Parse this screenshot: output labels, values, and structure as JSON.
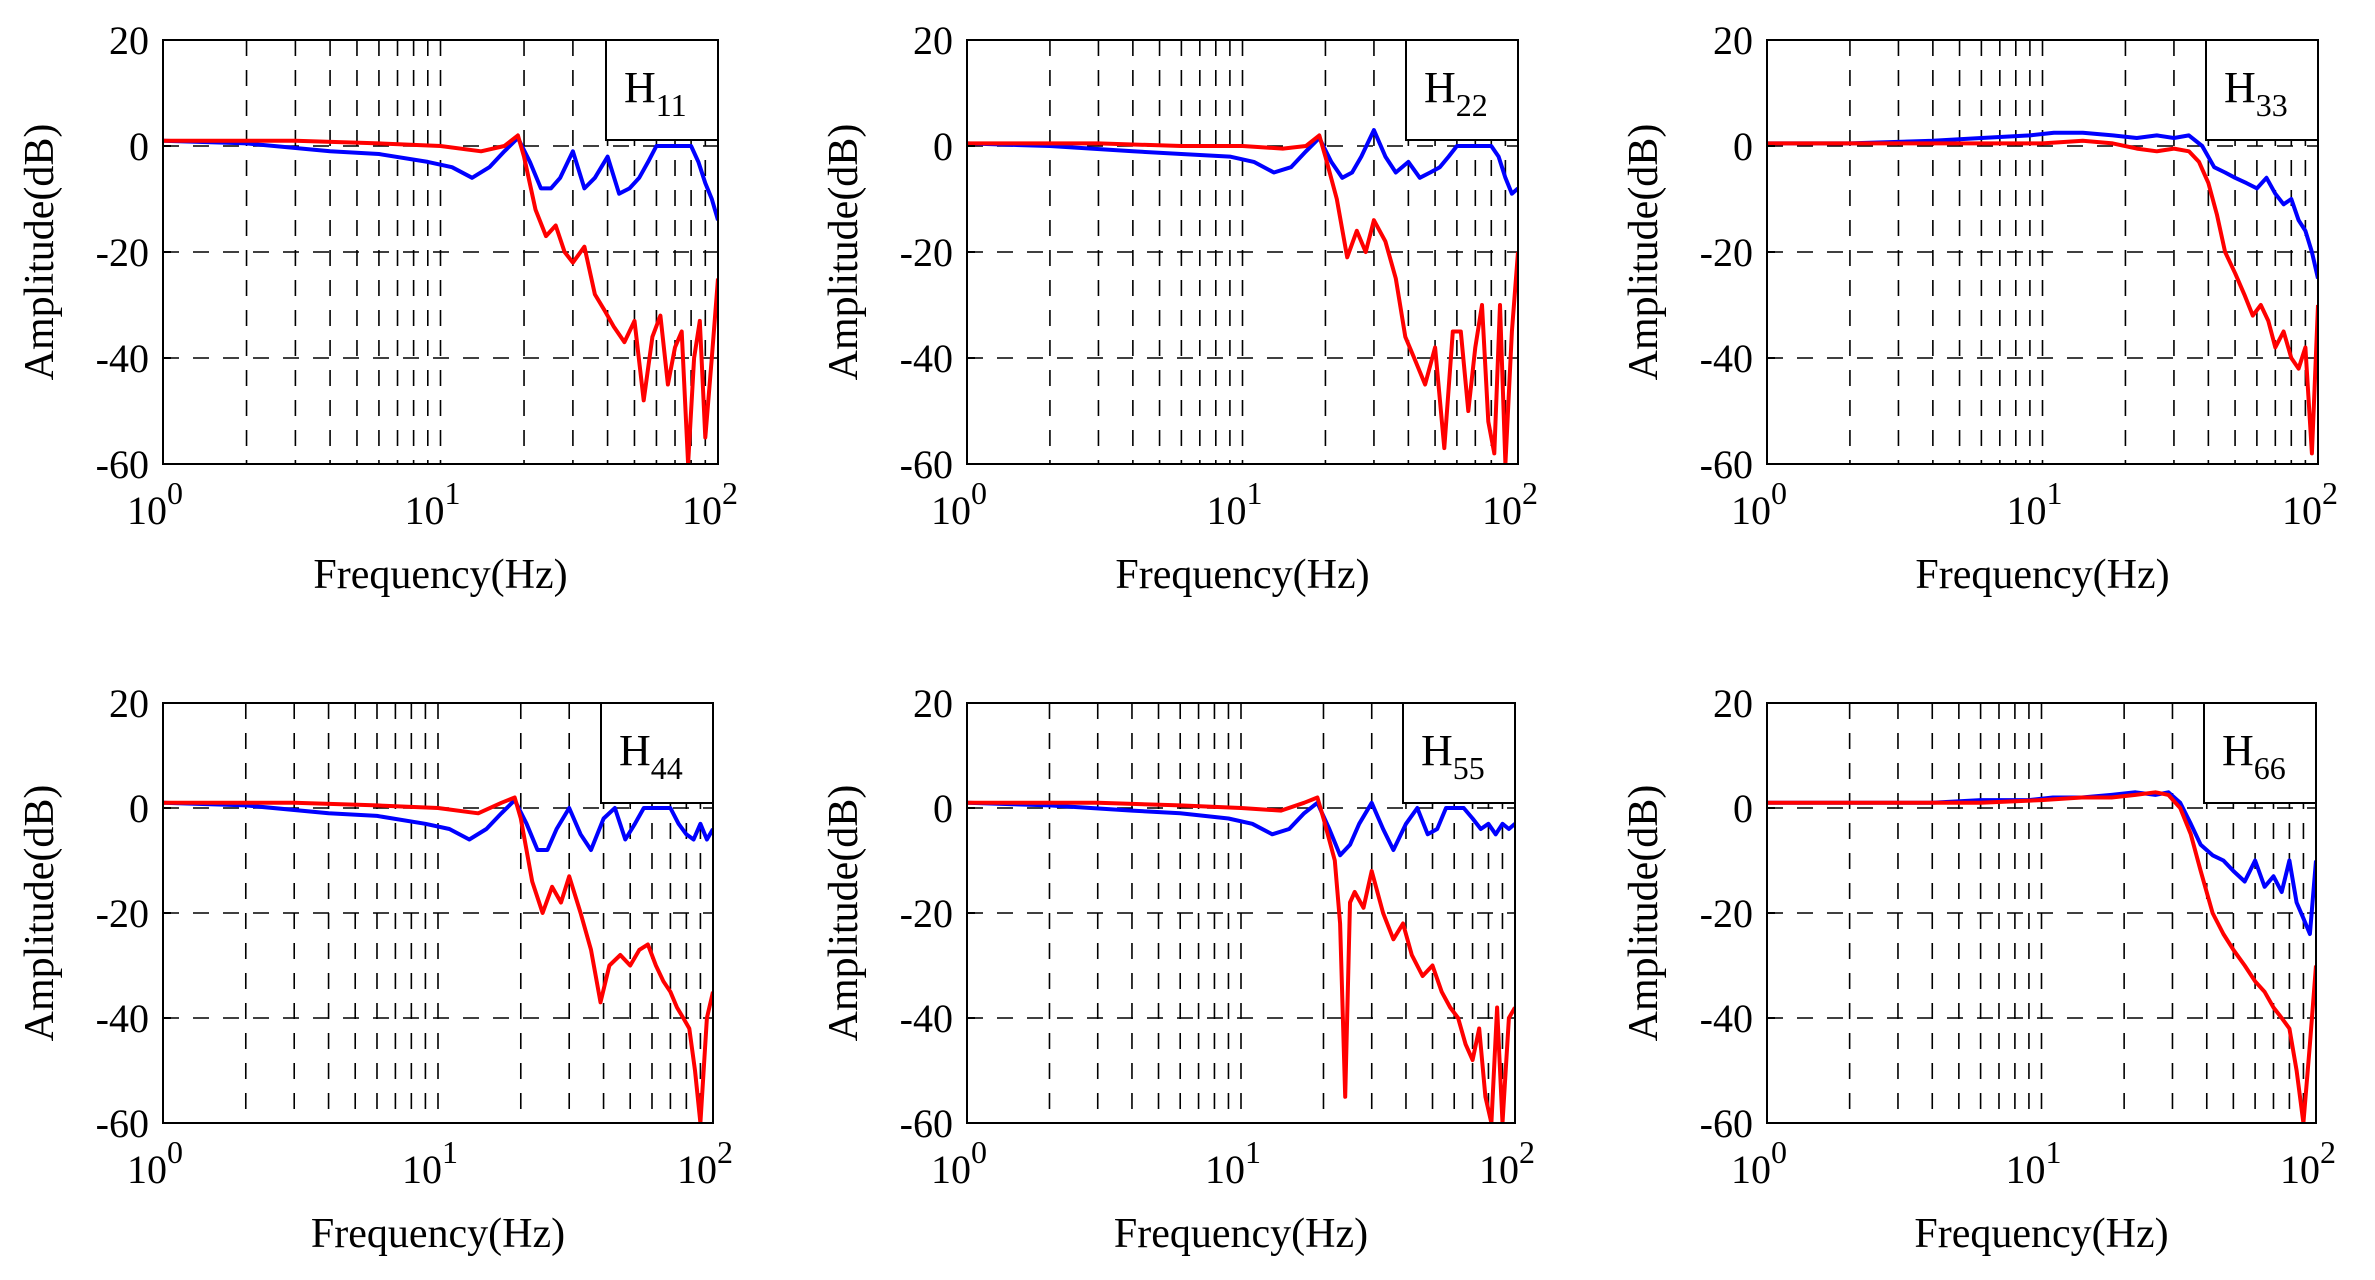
{
  "colors": {
    "series_a": "#0000ff",
    "series_b": "#ff0000",
    "grid": "#000000"
  },
  "chart_data": [
    {
      "type": "line",
      "label_main": "H",
      "label_sub": "11",
      "xlabel": "Frequency(Hz)",
      "ylabel": "Amplitude(dB)",
      "xscale": "log",
      "xlim": [
        1,
        100
      ],
      "ylim": [
        -60,
        20
      ],
      "xticks": [
        {
          "base": "10",
          "exp": "0"
        },
        {
          "base": "10",
          "exp": "1"
        },
        {
          "base": "10",
          "exp": "2"
        }
      ],
      "yticks": [
        "20",
        "0",
        "-20",
        "-40",
        "-60"
      ],
      "legend_position": "top-right",
      "series": [
        {
          "name": "blue",
          "color": "#0000ff",
          "x": [
            1,
            2,
            4,
            6,
            9,
            11,
            13,
            15,
            17,
            19,
            21,
            23,
            25,
            27,
            30,
            33,
            36,
            40,
            44,
            48,
            52,
            56,
            60,
            65,
            70,
            75,
            80,
            85,
            90,
            95,
            100
          ],
          "y": [
            1,
            0.5,
            -1,
            -1.5,
            -3,
            -4,
            -6,
            -4,
            -1,
            1.5,
            -3,
            -8,
            -8,
            -6,
            -1,
            -8,
            -6,
            -2,
            -9,
            -8,
            -6,
            -3,
            0,
            0,
            0,
            0,
            0,
            -3,
            -7,
            -10,
            -14
          ]
        },
        {
          "name": "red",
          "color": "#ff0000",
          "x": [
            1,
            3,
            6,
            10,
            14,
            17,
            19,
            20,
            22,
            24,
            26,
            28,
            30,
            33,
            36,
            39,
            42,
            46,
            50,
            54,
            58,
            62,
            66,
            70,
            74,
            78,
            82,
            86,
            90,
            95,
            100
          ],
          "y": [
            1,
            1,
            0.5,
            0,
            -1,
            0,
            2,
            -2,
            -12,
            -17,
            -15,
            -20,
            -22,
            -19,
            -28,
            -31,
            -34,
            -37,
            -33,
            -48,
            -36,
            -32,
            -45,
            -38,
            -35,
            -60,
            -40,
            -33,
            -55,
            -40,
            -25
          ]
        }
      ]
    },
    {
      "type": "line",
      "label_main": "H",
      "label_sub": "22",
      "xlabel": "Frequency(Hz)",
      "ylabel": "Amplitude(dB)",
      "xscale": "log",
      "xlim": [
        1,
        100
      ],
      "ylim": [
        -60,
        20
      ],
      "xticks": [
        {
          "base": "10",
          "exp": "0"
        },
        {
          "base": "10",
          "exp": "1"
        },
        {
          "base": "10",
          "exp": "2"
        }
      ],
      "yticks": [
        "20",
        "0",
        "-20",
        "-40",
        "-60"
      ],
      "legend_position": "top-right",
      "series": [
        {
          "name": "blue",
          "color": "#0000ff",
          "x": [
            1,
            2,
            4,
            6,
            9,
            11,
            13,
            15,
            17,
            19,
            21,
            23,
            25,
            27,
            30,
            33,
            36,
            40,
            44,
            48,
            52,
            56,
            60,
            65,
            70,
            75,
            80,
            85,
            90,
            95,
            100
          ],
          "y": [
            0.5,
            0,
            -1,
            -1.5,
            -2,
            -3,
            -5,
            -4,
            -1,
            1.5,
            -3,
            -6,
            -5,
            -2,
            3,
            -2,
            -5,
            -3,
            -6,
            -5,
            -4,
            -2,
            0,
            0,
            0,
            0,
            0,
            -2,
            -6,
            -9,
            -8
          ]
        },
        {
          "name": "red",
          "color": "#ff0000",
          "x": [
            1,
            3,
            6,
            10,
            14,
            17,
            19,
            20,
            22,
            24,
            26,
            28,
            30,
            33,
            36,
            39,
            42,
            46,
            50,
            54,
            58,
            62,
            66,
            70,
            74,
            78,
            82,
            86,
            90,
            95,
            100
          ],
          "y": [
            0.5,
            0.5,
            0,
            0,
            -0.5,
            0,
            2,
            -2,
            -10,
            -21,
            -16,
            -20,
            -14,
            -18,
            -25,
            -36,
            -40,
            -45,
            -38,
            -57,
            -35,
            -35,
            -50,
            -38,
            -30,
            -52,
            -58,
            -30,
            -60,
            -35,
            -20
          ]
        }
      ]
    },
    {
      "type": "line",
      "label_main": "H",
      "label_sub": "33",
      "xlabel": "Frequency(Hz)",
      "ylabel": "Amplitude(dB)",
      "xscale": "log",
      "xlim": [
        1,
        100
      ],
      "ylim": [
        -60,
        20
      ],
      "xticks": [
        {
          "base": "10",
          "exp": "0"
        },
        {
          "base": "10",
          "exp": "1"
        },
        {
          "base": "10",
          "exp": "2"
        }
      ],
      "yticks": [
        "20",
        "0",
        "-20",
        "-40",
        "-60"
      ],
      "legend_position": "top-right",
      "series": [
        {
          "name": "blue",
          "color": "#0000ff",
          "x": [
            1,
            2,
            4,
            6,
            9,
            11,
            14,
            18,
            22,
            26,
            30,
            34,
            38,
            42,
            46,
            50,
            55,
            60,
            65,
            70,
            75,
            80,
            85,
            90,
            95,
            100
          ],
          "y": [
            0.5,
            0.5,
            1,
            1.5,
            2,
            2.5,
            2.5,
            2,
            1.5,
            2,
            1.5,
            2,
            0,
            -4,
            -5,
            -6,
            -7,
            -8,
            -6,
            -9,
            -11,
            -10,
            -14,
            -16,
            -20,
            -25
          ]
        },
        {
          "name": "red",
          "color": "#ff0000",
          "x": [
            1,
            3,
            6,
            10,
            14,
            18,
            22,
            26,
            30,
            34,
            37,
            40,
            43,
            46,
            50,
            54,
            58,
            62,
            66,
            70,
            75,
            80,
            85,
            90,
            95,
            100
          ],
          "y": [
            0.5,
            0.5,
            0.5,
            0.5,
            1,
            0.5,
            -0.5,
            -1,
            -0.5,
            -1,
            -3,
            -7,
            -13,
            -20,
            -24,
            -28,
            -32,
            -30,
            -33,
            -38,
            -35,
            -40,
            -42,
            -38,
            -58,
            -30
          ]
        }
      ]
    },
    {
      "type": "line",
      "label_main": "H",
      "label_sub": "44",
      "xlabel": "Frequency(Hz)",
      "ylabel": "Amplitude(dB)",
      "xscale": "log",
      "xlim": [
        1,
        100
      ],
      "ylim": [
        -60,
        20
      ],
      "xticks": [
        {
          "base": "10",
          "exp": "0"
        },
        {
          "base": "10",
          "exp": "1"
        },
        {
          "base": "10",
          "exp": "2"
        }
      ],
      "yticks": [
        "20",
        "0",
        "-20",
        "-40",
        "-60"
      ],
      "legend_position": "top-right",
      "series": [
        {
          "name": "blue",
          "color": "#0000ff",
          "x": [
            1,
            2,
            4,
            6,
            9,
            11,
            13,
            15,
            17,
            19,
            21,
            23,
            25,
            27,
            30,
            33,
            36,
            40,
            44,
            48,
            52,
            56,
            60,
            65,
            70,
            75,
            80,
            85,
            90,
            95,
            100
          ],
          "y": [
            1,
            0.5,
            -1,
            -1.5,
            -3,
            -4,
            -6,
            -4,
            -1,
            1.5,
            -3,
            -8,
            -8,
            -4,
            0,
            -5,
            -8,
            -2,
            0,
            -6,
            -3,
            0,
            0,
            0,
            0,
            -3,
            -5,
            -6,
            -3,
            -6,
            -4
          ]
        },
        {
          "name": "red",
          "color": "#ff0000",
          "x": [
            1,
            3,
            6,
            10,
            14,
            17,
            19,
            20,
            22,
            24,
            26,
            28,
            30,
            33,
            36,
            39,
            42,
            46,
            50,
            54,
            58,
            62,
            66,
            70,
            74,
            78,
            82,
            86,
            90,
            95,
            100
          ],
          "y": [
            1,
            1,
            0.5,
            0,
            -1,
            1,
            2,
            -2,
            -14,
            -20,
            -15,
            -18,
            -13,
            -20,
            -27,
            -37,
            -30,
            -28,
            -30,
            -27,
            -26,
            -30,
            -33,
            -35,
            -38,
            -40,
            -42,
            -50,
            -60,
            -40,
            -35
          ]
        }
      ]
    },
    {
      "type": "line",
      "label_main": "H",
      "label_sub": "55",
      "xlabel": "Frequency(Hz)",
      "ylabel": "Amplitude(dB)",
      "xscale": "log",
      "xlim": [
        1,
        100
      ],
      "ylim": [
        -60,
        20
      ],
      "xticks": [
        {
          "base": "10",
          "exp": "0"
        },
        {
          "base": "10",
          "exp": "1"
        },
        {
          "base": "10",
          "exp": "2"
        }
      ],
      "yticks": [
        "20",
        "0",
        "-20",
        "-40",
        "-60"
      ],
      "legend_position": "top-right",
      "series": [
        {
          "name": "blue",
          "color": "#0000ff",
          "x": [
            1,
            2,
            4,
            6,
            9,
            11,
            13,
            15,
            17,
            19,
            21,
            23,
            25,
            27,
            30,
            33,
            36,
            40,
            44,
            48,
            52,
            56,
            60,
            65,
            70,
            75,
            80,
            85,
            90,
            95,
            100
          ],
          "y": [
            1,
            0.5,
            -0.5,
            -1,
            -2,
            -3,
            -5,
            -4,
            -1,
            1,
            -4,
            -9,
            -7,
            -3,
            1,
            -4,
            -8,
            -3,
            0,
            -5,
            -4,
            0,
            0,
            0,
            -2,
            -4,
            -3,
            -5,
            -3,
            -4,
            -3
          ]
        },
        {
          "name": "red",
          "color": "#ff0000",
          "x": [
            1,
            3,
            6,
            10,
            14,
            17,
            19,
            20,
            22,
            23,
            24,
            25,
            26,
            28,
            30,
            33,
            36,
            39,
            42,
            46,
            50,
            54,
            58,
            62,
            66,
            70,
            74,
            78,
            82,
            86,
            90,
            95,
            100
          ],
          "y": [
            1,
            1,
            0.5,
            0,
            -0.5,
            1,
            2,
            -2,
            -10,
            -22,
            -55,
            -18,
            -16,
            -19,
            -12,
            -20,
            -25,
            -22,
            -28,
            -32,
            -30,
            -35,
            -38,
            -40,
            -45,
            -48,
            -42,
            -55,
            -60,
            -38,
            -60,
            -40,
            -38
          ]
        }
      ]
    },
    {
      "type": "line",
      "label_main": "H",
      "label_sub": "66",
      "xlabel": "Frequency(Hz)",
      "ylabel": "Amplitude(dB)",
      "xscale": "log",
      "xlim": [
        1,
        100
      ],
      "ylim": [
        -60,
        20
      ],
      "xticks": [
        {
          "base": "10",
          "exp": "0"
        },
        {
          "base": "10",
          "exp": "1"
        },
        {
          "base": "10",
          "exp": "2"
        }
      ],
      "yticks": [
        "20",
        "0",
        "-20",
        "-40",
        "-60"
      ],
      "legend_position": "top-right",
      "series": [
        {
          "name": "blue",
          "color": "#0000ff",
          "x": [
            1,
            2,
            4,
            6,
            9,
            11,
            14,
            18,
            22,
            26,
            29,
            32,
            35,
            38,
            42,
            46,
            50,
            55,
            60,
            65,
            70,
            75,
            80,
            85,
            90,
            95,
            100
          ],
          "y": [
            1,
            1,
            1,
            1.5,
            1.5,
            2,
            2,
            2.5,
            3,
            2.5,
            3,
            1,
            -3,
            -7,
            -9,
            -10,
            -12,
            -14,
            -10,
            -15,
            -13,
            -16,
            -10,
            -18,
            -21,
            -24,
            -10
          ]
        },
        {
          "name": "red",
          "color": "#ff0000",
          "x": [
            1,
            3,
            6,
            10,
            14,
            18,
            22,
            26,
            29,
            32,
            35,
            38,
            42,
            46,
            50,
            55,
            60,
            65,
            70,
            75,
            80,
            85,
            90,
            95,
            100
          ],
          "y": [
            1,
            1,
            1,
            1.5,
            2,
            2,
            2.5,
            3,
            2.5,
            0,
            -5,
            -12,
            -20,
            -24,
            -27,
            -30,
            -33,
            -35,
            -38,
            -40,
            -42,
            -50,
            -60,
            -45,
            -30
          ]
        }
      ]
    }
  ]
}
